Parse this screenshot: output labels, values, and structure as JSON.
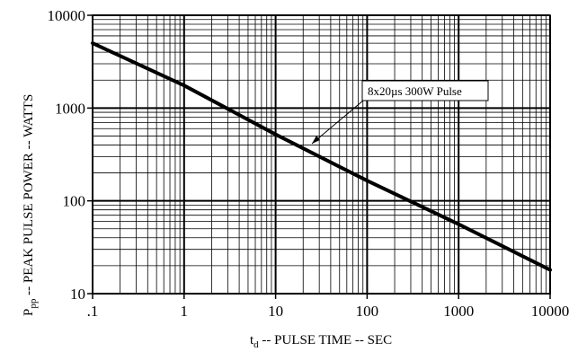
{
  "chart_data": {
    "type": "line",
    "title": "",
    "xlabel": {
      "prefix": "t",
      "sub": "d",
      "suffix": " -- PULSE TIME -- SEC"
    },
    "ylabel": {
      "prefix": "P",
      "sub": "pp",
      "suffix": " -- PEAK PULSE POWER -- WATTS"
    },
    "x_scale": "log",
    "y_scale": "log",
    "xlim": [
      0.1,
      10000
    ],
    "ylim": [
      10,
      10000
    ],
    "x_ticks": [
      0.1,
      1,
      10,
      100,
      1000,
      10000
    ],
    "x_tick_labels": [
      ".1",
      "1",
      "10",
      "100",
      "1000",
      "10000"
    ],
    "y_ticks": [
      10,
      100,
      1000,
      10000
    ],
    "y_tick_labels": [
      "10",
      "100",
      "1000",
      "10000"
    ],
    "grid": true,
    "series": [
      {
        "name": "8x20µs 300W Pulse",
        "x": [
          0.1,
          1,
          10,
          100,
          1000,
          10000
        ],
        "y": [
          5000,
          1750,
          520,
          165,
          56,
          18
        ]
      }
    ],
    "annotations": [
      {
        "text": "8x20µs 300W Pulse",
        "points_to": {
          "x": 20,
          "y": 350
        }
      }
    ]
  }
}
